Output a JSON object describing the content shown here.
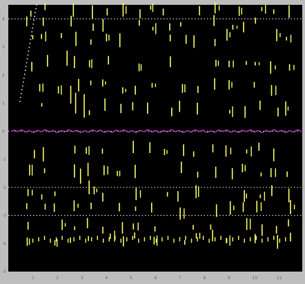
{
  "chart_data": {
    "type": "scatter",
    "title": "",
    "xlabel": "",
    "ylabel": "",
    "background": "#000000",
    "frame_color": "#bdbdbd",
    "mark_color": "#ffff66",
    "trace_color": "#c03cc8",
    "gridline_color": "#ffffff",
    "grid": "horizontal dotted at y = 4, 0, -2, -3",
    "xlim": [
      0,
      12
    ],
    "ylim": [
      -5,
      4.5
    ],
    "y_ticks": [
      4,
      3,
      2,
      1,
      0,
      -1,
      -2,
      -3,
      -4,
      -5
    ],
    "x_ticks": [
      1,
      2,
      3,
      4,
      5,
      6,
      7,
      8,
      9,
      10,
      11
    ],
    "gridlines_y": [
      4,
      0,
      -2,
      -3
    ],
    "spike_columns_x": [
      0.9,
      1.45,
      2.05,
      2.7,
      3.35,
      4.0,
      4.6,
      5.25,
      5.85,
      6.5,
      7.1,
      7.7,
      8.35,
      9.0,
      9.6,
      10.2,
      10.85,
      11.45
    ],
    "spike_rows_y": [
      4.3,
      3.8,
      3.3,
      2.4,
      1.6,
      0.8,
      -0.7,
      -1.4,
      -2.2,
      -2.8,
      -3.4,
      -3.85
    ],
    "trace_level_y": 0
  }
}
